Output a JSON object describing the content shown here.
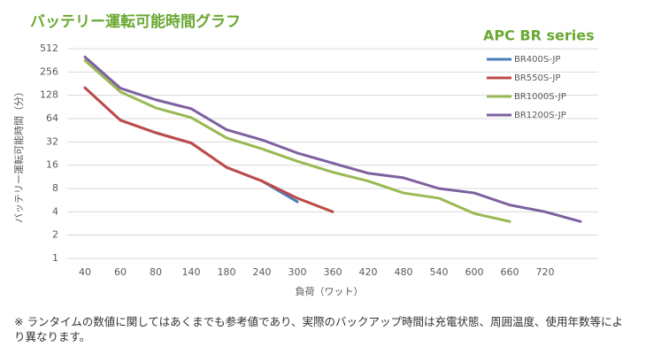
{
  "chart_data": {
    "type": "line",
    "title": "バッテリー運転可能時間グラフ",
    "subtitle": "APC BR series",
    "y_label": "バッテリー運転可能時間（分）",
    "x_label": "負荷（ワット）",
    "categories": [
      "40",
      "60",
      "80",
      "140",
      "180",
      "240",
      "300",
      "360",
      "420",
      "480",
      "540",
      "600",
      "660",
      "720",
      null
    ],
    "series": [
      {
        "name": "BR400S-JP",
        "color": "#4a7ebb",
        "values": [
          160,
          61,
          42,
          31,
          15,
          10,
          5.4,
          null,
          null,
          null,
          null,
          null,
          null,
          null,
          null
        ]
      },
      {
        "name": "BR550S-JP",
        "color": "#be4b48",
        "values": [
          160,
          61,
          42,
          31,
          15,
          10,
          6,
          4,
          null,
          null,
          null,
          null,
          null,
          null,
          null
        ]
      },
      {
        "name": "BR1000S-JP",
        "color": "#98b954",
        "values": [
          360,
          142,
          88,
          66,
          36,
          26,
          18,
          13,
          10,
          7,
          6,
          3.8,
          3,
          null,
          null
        ]
      },
      {
        "name": "BR1200S-JP",
        "color": "#7d60a0",
        "values": [
          400,
          158,
          112,
          86,
          46,
          34,
          23,
          17,
          12.6,
          11,
          8,
          7,
          4.9,
          4,
          3
        ]
      }
    ],
    "yscale": "log",
    "log_base": 2,
    "ylim": [
      1,
      512
    ],
    "yticks": [
      1,
      2,
      4,
      8,
      16,
      32,
      64,
      128,
      256,
      512
    ],
    "grid": true,
    "legend": "right",
    "note": "※ ランタイムの数値に関してはあくまでも参考値であり、実際のバックアップ時間は充電状態、周囲温度、使用年数等により異なります。"
  }
}
